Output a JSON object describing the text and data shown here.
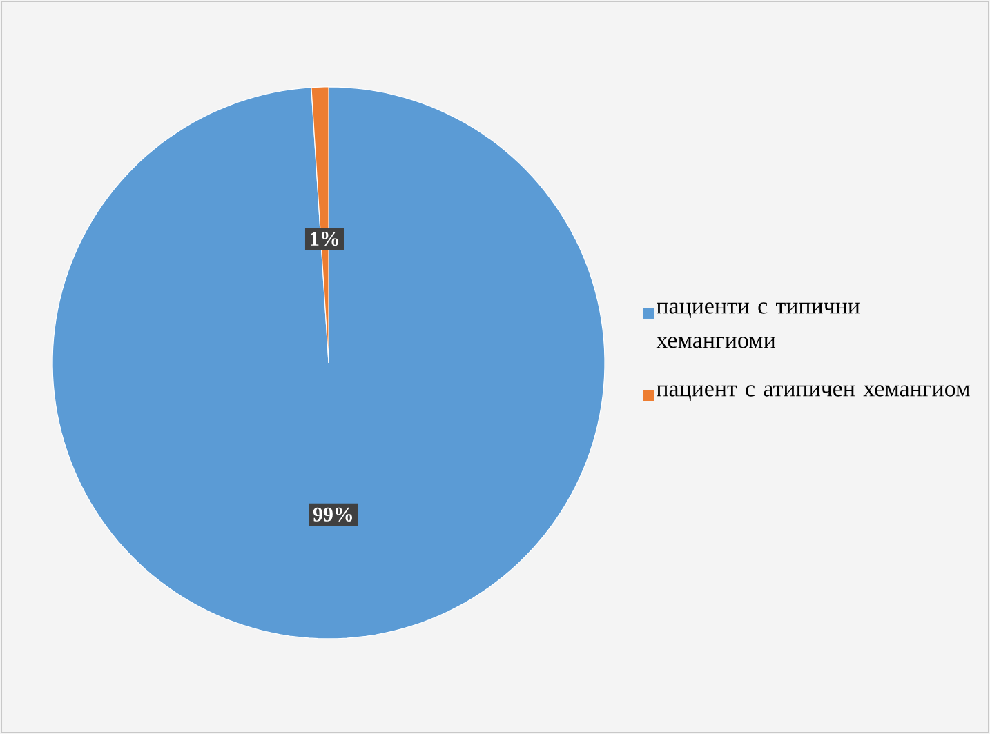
{
  "chart_data": {
    "type": "pie",
    "categories": [
      "пациенти с типични хемангиоми",
      "пациент с атипичен хемангиом"
    ],
    "values": [
      99,
      1
    ],
    "colors": [
      "#5b9bd5",
      "#ed7d31"
    ],
    "value_labels": [
      "99%",
      "1%"
    ],
    "legend": "right"
  }
}
